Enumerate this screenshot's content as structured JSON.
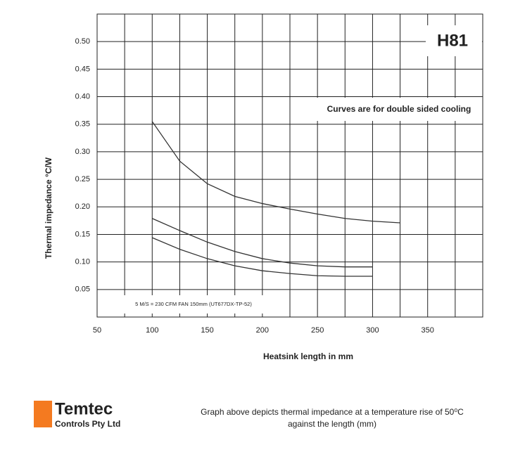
{
  "chart_data": {
    "type": "line",
    "annotations": {
      "model": "H81",
      "note": "Curves are for double sided cooling",
      "fan": "5 M/S = 230 CFM FAN 150mm (UT677DX-TP-52)"
    },
    "xlabel": "Heatsink length in mm",
    "ylabel": "Thermal impedance °C/W",
    "x": [
      100,
      125,
      150,
      175,
      200,
      225,
      250,
      275,
      300,
      325
    ],
    "series": [
      {
        "color": "#333333",
        "values": [
          0.355,
          0.283,
          0.242,
          0.219,
          0.206,
          0.196,
          0.187,
          0.179,
          0.174,
          0.171
        ]
      },
      {
        "color": "#333333",
        "values": [
          0.179,
          0.157,
          0.136,
          0.119,
          0.106,
          0.098,
          0.093,
          0.091,
          0.091,
          null
        ]
      },
      {
        "color": "#333333",
        "values": [
          0.144,
          0.123,
          0.106,
          0.093,
          0.084,
          0.079,
          0.075,
          0.074,
          0.074,
          null
        ]
      }
    ],
    "xlim": [
      50,
      400
    ],
    "xticks": [
      50,
      100,
      150,
      200,
      250,
      300,
      350
    ],
    "ylim": [
      0,
      0.55
    ],
    "yticks": [
      0.05,
      {
        "value": 0.1,
        "label": "0.10"
      },
      0.15,
      {
        "value": 0.2,
        "label": "0.20"
      },
      0.25,
      {
        "value": 0.3,
        "label": "0.30"
      },
      0.35,
      {
        "value": 0.4,
        "label": "0.40"
      },
      0.45,
      {
        "value": 0.5,
        "label": "0.50"
      }
    ],
    "grid": true
  },
  "footer": {
    "company": "Temtec",
    "subtitle": "Controls Pty Ltd",
    "caption": [
      "Graph above depicts thermal impedance at a temperature rise of 50⁰C",
      "against the length (mm)"
    ]
  }
}
